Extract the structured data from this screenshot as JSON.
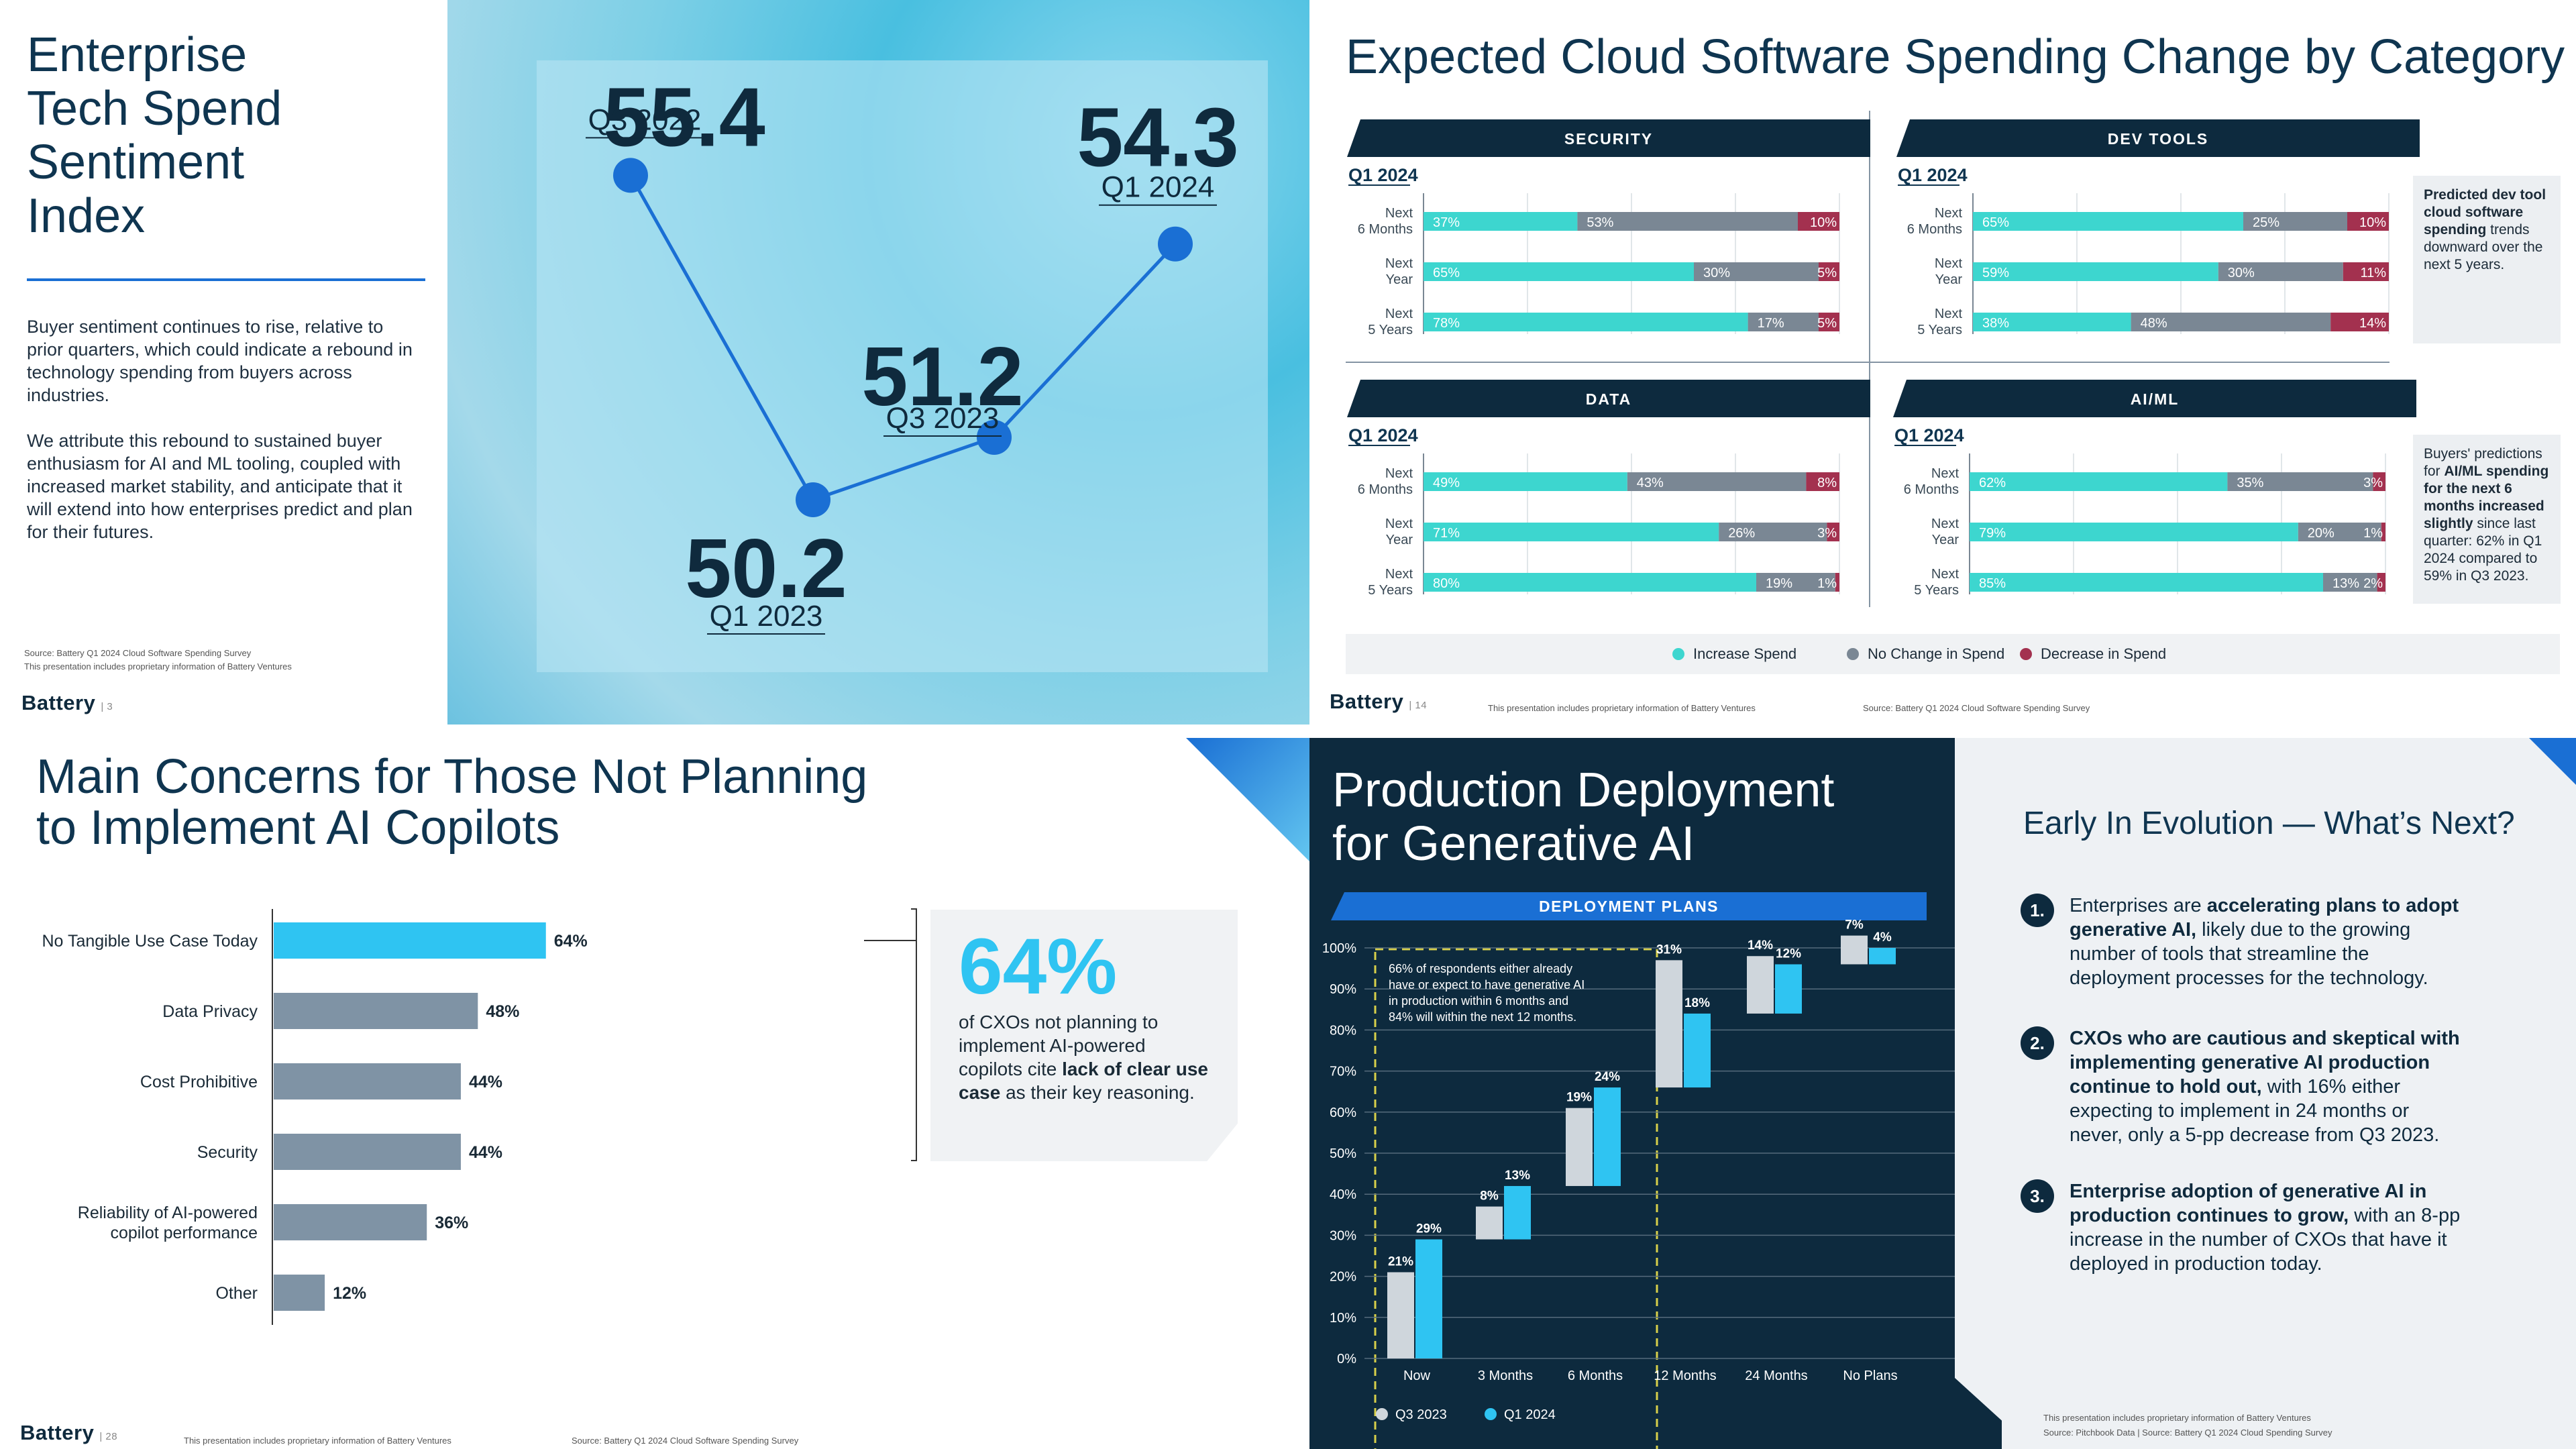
{
  "brand": "Battery",
  "colors": {
    "navy": "#0d2a3e",
    "cyan": "#3dd6cf",
    "gray": "#7a8794",
    "red": "#a3314f",
    "bright": "#2fc4f2",
    "slate": "#7f93a5",
    "blue": "#1a6fd4"
  },
  "slide1": {
    "title": [
      "Enterprise",
      "Tech Spend",
      "Sentiment",
      "Index"
    ],
    "para1": "Buyer sentiment continues to rise, relative to prior quarters, which could indicate a rebound in technology spending from buyers across industries.",
    "para2": "We attribute this rebound to sustained buyer enthusiasm for AI and ML tooling, coupled with increased market stability, and anticipate that it will extend into how enterprises predict and plan for their futures.",
    "source": "Source: Battery Q1 2024 Cloud Software Spending Survey",
    "proprietary": "This presentation includes proprietary information of Battery Ventures",
    "page": "3",
    "chart_data": {
      "type": "line",
      "title": "Enterprise Tech Spend Sentiment Index",
      "categories": [
        "Q3 2022",
        "Q1 2023",
        "Q3 2023",
        "Q1 2024"
      ],
      "values": [
        55.4,
        50.2,
        51.2,
        54.3
      ],
      "value_labels": [
        "55.4",
        "50.2",
        "51.2",
        "54.3"
      ],
      "ylim": [
        49,
        56
      ]
    }
  },
  "slide2": {
    "title": "Expected Cloud Software Spending Change by Category",
    "period": "Q1 2024",
    "page": "14",
    "proprietary": "This presentation includes proprietary information of Battery Ventures",
    "source": "Source: Battery Q1 2024 Cloud Software Spending Survey",
    "legend": [
      "Increase Spend",
      "No Change in Spend",
      "Decrease in Spend"
    ],
    "row_labels": [
      [
        "Next",
        "6 Months"
      ],
      [
        "Next",
        "Year"
      ],
      [
        "Next",
        "5 Years"
      ]
    ],
    "note_devtools": {
      "bold": "Predicted dev tool cloud software spending",
      "rest": " trends downward over the next 5 years."
    },
    "note_aiml": {
      "pre": "Buyers' predictions for ",
      "bold": "AI/ML spending for the next 6 months increased slightly",
      "rest": " since last quarter: 62% in Q1 2024 compared to 59% in Q3 2023."
    },
    "chart_data": [
      {
        "type": "bar",
        "title": "SECURITY",
        "categories": [
          "Next 6 Months",
          "Next Year",
          "Next 5 Years"
        ],
        "series": [
          {
            "name": "Increase Spend",
            "values": [
              37,
              65,
              78
            ]
          },
          {
            "name": "No Change in Spend",
            "values": [
              53,
              30,
              17
            ]
          },
          {
            "name": "Decrease in Spend",
            "values": [
              10,
              5,
              5
            ]
          }
        ]
      },
      {
        "type": "bar",
        "title": "DEV TOOLS",
        "categories": [
          "Next 6 Months",
          "Next Year",
          "Next 5 Years"
        ],
        "series": [
          {
            "name": "Increase Spend",
            "values": [
              65,
              59,
              38
            ]
          },
          {
            "name": "No Change in Spend",
            "values": [
              25,
              30,
              48
            ]
          },
          {
            "name": "Decrease in Spend",
            "values": [
              10,
              11,
              14
            ]
          }
        ]
      },
      {
        "type": "bar",
        "title": "DATA",
        "categories": [
          "Next 6 Months",
          "Next Year",
          "Next 5 Years"
        ],
        "series": [
          {
            "name": "Increase Spend",
            "values": [
              49,
              71,
              80
            ]
          },
          {
            "name": "No Change in Spend",
            "values": [
              43,
              26,
              19
            ]
          },
          {
            "name": "Decrease in Spend",
            "values": [
              8,
              3,
              1
            ]
          }
        ]
      },
      {
        "type": "bar",
        "title": "AI/ML",
        "categories": [
          "Next 6 Months",
          "Next Year",
          "Next 5 Years"
        ],
        "series": [
          {
            "name": "Increase Spend",
            "values": [
              62,
              79,
              85
            ]
          },
          {
            "name": "No Change in Spend",
            "values": [
              35,
              20,
              13
            ]
          },
          {
            "name": "Decrease in Spend",
            "values": [
              3,
              1,
              2
            ]
          }
        ]
      }
    ]
  },
  "slide3": {
    "title": [
      "Main Concerns for Those Not Planning",
      "to Implement AI Copilots"
    ],
    "callout_big": "64%",
    "callout_pre": "of CXOs not planning to implement AI-powered copilots cite ",
    "callout_bold": "lack of clear use case",
    "callout_post": " as their key reasoning.",
    "page": "28",
    "proprietary": "This presentation includes proprietary information of Battery Ventures",
    "source": "Source: Battery Q1 2024 Cloud Software Spending Survey",
    "chart_data": {
      "type": "bar",
      "orientation": "horizontal",
      "categories": [
        "No Tangible Use Case Today",
        "Data Privacy",
        "Cost Prohibitive",
        "Security",
        "Reliability of AI-powered copilot performance",
        "Other"
      ],
      "category_lines": [
        [
          "No Tangible Use Case Today"
        ],
        [
          "Data Privacy"
        ],
        [
          "Cost Prohibitive"
        ],
        [
          "Security"
        ],
        [
          "Reliability of AI-powered",
          "copilot performance"
        ],
        [
          "Other"
        ]
      ],
      "values": [
        64,
        48,
        44,
        44,
        36,
        12
      ],
      "xlim": [
        0,
        100
      ]
    }
  },
  "slide4": {
    "title": [
      "Production Deployment",
      "for Generative AI"
    ],
    "chart_title": "DEPLOYMENT PLANS",
    "annotation": [
      "66% of respondents either already",
      "have or expect to have generative AI",
      "in production within 6 months and",
      "84% will within the next 12 months."
    ],
    "right_title": "Early In Evolution — What’s Next?",
    "points": [
      {
        "num": "1.",
        "lines": [
          [
            [
              "Enterprises are ",
              false
            ],
            [
              "accelerating plans to adopt",
              true
            ]
          ],
          [
            [
              "generative AI,",
              true
            ],
            [
              " likely due to the growing",
              false
            ]
          ],
          [
            [
              "number of tools that streamline the",
              false
            ]
          ],
          [
            [
              "deployment processes for the technology.",
              false
            ]
          ]
        ]
      },
      {
        "num": "2.",
        "lines": [
          [
            [
              "CXOs who are cautious and skeptical with",
              true
            ]
          ],
          [
            [
              "implementing generative AI production",
              true
            ]
          ],
          [
            [
              "continue to hold out,",
              true
            ],
            [
              " with 16% either",
              false
            ]
          ],
          [
            [
              "expecting to implement in 24 months or",
              false
            ]
          ],
          [
            [
              "never, only a 5-pp decrease from Q3 2023.",
              false
            ]
          ]
        ]
      },
      {
        "num": "3.",
        "lines": [
          [
            [
              "Enterprise adoption of generative AI in",
              true
            ]
          ],
          [
            [
              "production continues to grow,",
              true
            ],
            [
              " with an 8-pp",
              false
            ]
          ],
          [
            [
              "increase in the number of CXOs that have it",
              false
            ]
          ],
          [
            [
              "deployed in production today.",
              false
            ]
          ]
        ]
      }
    ],
    "proprietary": "This presentation includes proprietary information of Battery Ventures",
    "source": "Source: Pitchbook Data | Source: Battery Q1 2024 Cloud Spending Survey",
    "chart_data": {
      "type": "bar",
      "subtype": "waterfall",
      "categories": [
        "Now",
        "3 Months",
        "6 Months",
        "12 Months",
        "24 Months",
        "No Plans"
      ],
      "series": [
        {
          "name": "Q3 2023",
          "values": [
            21,
            8,
            19,
            31,
            14,
            7
          ]
        },
        {
          "name": "Q1 2024",
          "values": [
            29,
            13,
            24,
            18,
            12,
            4
          ]
        }
      ],
      "ylim": [
        0,
        100
      ],
      "yticks": [
        "0%",
        "10%",
        "20%",
        "30%",
        "40%",
        "50%",
        "60%",
        "70%",
        "80%",
        "90%",
        "100%"
      ]
    }
  }
}
